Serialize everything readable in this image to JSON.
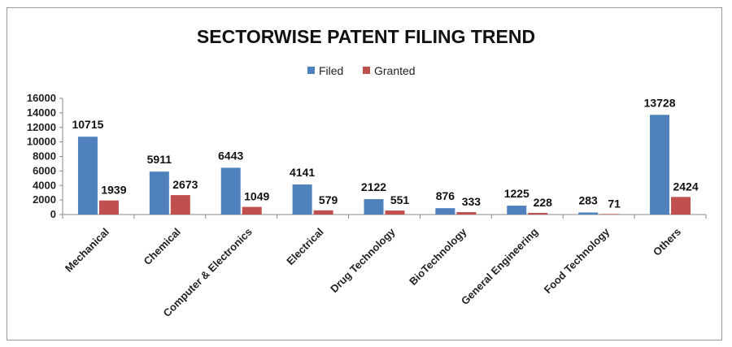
{
  "chart_data": {
    "type": "bar",
    "title": "SECTORWISE PATENT FILING TREND",
    "categories": [
      "Mechanical",
      "Chemical",
      "Computer & Electronics",
      "Electrical",
      "Drug Technology",
      "BioTechnology",
      "General Engineering",
      "Food Technology",
      "Others"
    ],
    "series": [
      {
        "name": "Filed",
        "values": [
          10715,
          5911,
          6443,
          4141,
          2122,
          876,
          1225,
          283,
          13728
        ]
      },
      {
        "name": "Granted",
        "values": [
          1939,
          2673,
          1049,
          579,
          551,
          333,
          228,
          71,
          2424
        ]
      }
    ],
    "ylim": [
      0,
      16000
    ],
    "yticks": [
      "0",
      "2000",
      "4000",
      "6000",
      "8000",
      "10000",
      "12000",
      "14000",
      "16000"
    ],
    "legend_position": "top-center",
    "grid": false,
    "colors": {
      "Filed": "#4f81bd",
      "Granted": "#c0504d"
    }
  }
}
